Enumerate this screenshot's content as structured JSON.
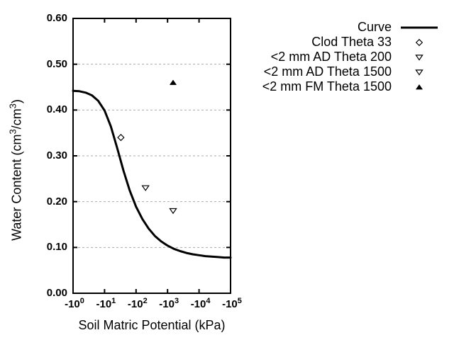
{
  "figure": {
    "background": "#ffffff",
    "axis_color": "#000000",
    "grid_color": "#aaaaaa",
    "curve_color": "#000000"
  },
  "y_axis": {
    "title": "Water Content (cm³/cm³)",
    "title_parts": [
      {
        "t": "Water Content (cm"
      },
      {
        "t": "3",
        "sup": true
      },
      {
        "t": "/cm"
      },
      {
        "t": "3",
        "sup": true
      },
      {
        "t": ")"
      }
    ],
    "ticks": [
      "0.00",
      "0.10",
      "0.20",
      "0.30",
      "0.40",
      "0.50",
      "0.60"
    ],
    "tick_values": [
      0,
      0.1,
      0.2,
      0.3,
      0.4,
      0.5,
      0.6
    ],
    "range": [
      0,
      0.6
    ]
  },
  "x_axis": {
    "title": "Soil Matric Potential (kPa)",
    "tick_base": "-10",
    "tick_exponents": [
      "0",
      "1",
      "2",
      "3",
      "4",
      "5"
    ],
    "scale": "log10 of |kPa|",
    "range_log": [
      0,
      5
    ]
  },
  "legend": {
    "entries": [
      {
        "label": "Curve",
        "marker": "line"
      },
      {
        "label": "Clod Theta 33",
        "marker": "diamond-open"
      },
      {
        "label": "<2 mm AD Theta 200",
        "marker": "triangle-down-open"
      },
      {
        "label": "<2 mm AD Theta 1500",
        "marker": "triangle-down-open"
      },
      {
        "label": "<2 mm FM Theta 1500",
        "marker": "triangle-up-filled"
      }
    ]
  },
  "chart_data": {
    "type": "line",
    "title": "",
    "xlabel": "Soil Matric Potential (kPa)",
    "ylabel": "Water Content (cm³/cm³)",
    "x_scale": "log, negative kPa from -10^0 to -10^5",
    "xlim_log": [
      0,
      5
    ],
    "ylim": [
      0,
      0.6
    ],
    "grid": "horizontal dashed gridlines at 0.10 - 0.50",
    "legend_position": "outside top-right",
    "curve": {
      "name": "Curve",
      "points_log10h_theta": [
        [
          0.0,
          0.442
        ],
        [
          0.2,
          0.441
        ],
        [
          0.4,
          0.438
        ],
        [
          0.6,
          0.432
        ],
        [
          0.8,
          0.42
        ],
        [
          1.0,
          0.399
        ],
        [
          1.2,
          0.364
        ],
        [
          1.4,
          0.317
        ],
        [
          1.6,
          0.268
        ],
        [
          1.8,
          0.224
        ],
        [
          2.0,
          0.189
        ],
        [
          2.2,
          0.162
        ],
        [
          2.4,
          0.141
        ],
        [
          2.6,
          0.125
        ],
        [
          2.8,
          0.113
        ],
        [
          3.0,
          0.104
        ],
        [
          3.2,
          0.097
        ],
        [
          3.4,
          0.092
        ],
        [
          3.6,
          0.088
        ],
        [
          3.8,
          0.085
        ],
        [
          4.0,
          0.083
        ],
        [
          4.2,
          0.081
        ],
        [
          4.4,
          0.08
        ],
        [
          4.6,
          0.079
        ],
        [
          4.8,
          0.078
        ],
        [
          5.0,
          0.078
        ]
      ]
    },
    "series": [
      {
        "name": "Clod Theta 33",
        "marker": "diamond-open",
        "points": [
          {
            "kPa": -33,
            "theta": 0.34
          }
        ]
      },
      {
        "name": "<2 mm AD Theta 200",
        "marker": "triangle-down-open",
        "points": [
          {
            "kPa": -200,
            "theta": 0.23
          }
        ]
      },
      {
        "name": "<2 mm AD Theta 1500",
        "marker": "triangle-down-open",
        "points": [
          {
            "kPa": -1500,
            "theta": 0.18
          }
        ]
      },
      {
        "name": "<2 mm FM Theta 1500",
        "marker": "triangle-up-filled",
        "points": [
          {
            "kPa": -1500,
            "theta": 0.46
          }
        ]
      }
    ]
  }
}
